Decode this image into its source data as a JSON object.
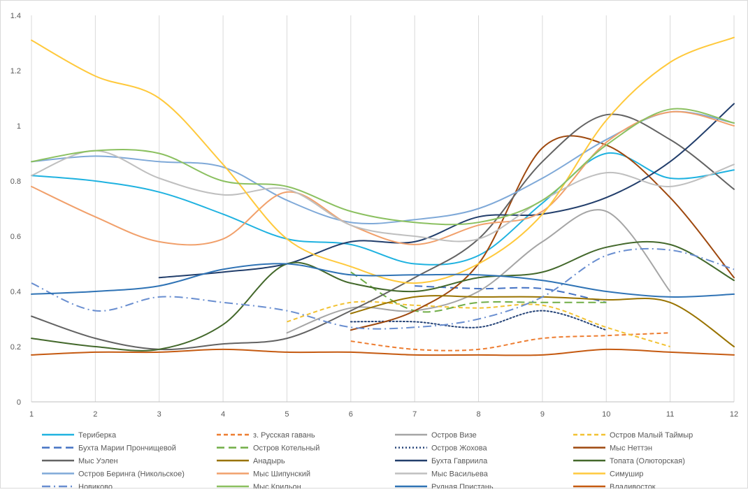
{
  "chart_data": {
    "type": "line",
    "title": "",
    "xlabel": "",
    "ylabel": "",
    "xlim": [
      1,
      12
    ],
    "ylim": [
      0,
      1.4
    ],
    "x_ticks": [
      "1",
      "2",
      "3",
      "4",
      "5",
      "6",
      "7",
      "8",
      "9",
      "10",
      "11",
      "12"
    ],
    "y_ticks": [
      "0",
      "0.2",
      "0.4",
      "0.6",
      "0.8",
      "1",
      "1.2",
      "1.4"
    ],
    "grid": "vertical",
    "legend_position": "bottom",
    "series": [
      {
        "name": "Териберка",
        "color": "#1fb2e0",
        "dash": "solid",
        "x": [
          1,
          2,
          3,
          4,
          5,
          6,
          7,
          8,
          9,
          10,
          11,
          12
        ],
        "values": [
          0.82,
          0.8,
          0.76,
          0.68,
          0.59,
          0.57,
          0.5,
          0.53,
          0.72,
          0.9,
          0.81,
          0.84
        ]
      },
      {
        "name": "з. Русская гавань",
        "color": "#ed7d31",
        "dash": "dashed",
        "x": [
          6,
          7,
          8,
          9,
          10,
          11
        ],
        "values": [
          0.22,
          0.19,
          0.19,
          0.23,
          0.24,
          0.25
        ]
      },
      {
        "name": "Остров Визе",
        "color": "#a5a5a5",
        "dash": "solid",
        "x": [
          5,
          6,
          7,
          8,
          9,
          10,
          11
        ],
        "values": [
          0.25,
          0.34,
          0.33,
          0.4,
          0.58,
          0.69,
          0.4
        ]
      },
      {
        "name": "Остров Малый Таймыр",
        "color": "#f2c233",
        "dash": "dashed",
        "x": [
          5,
          6,
          7,
          8,
          9,
          10,
          11
        ],
        "values": [
          0.29,
          0.36,
          0.35,
          0.34,
          0.35,
          0.27,
          0.2
        ]
      },
      {
        "name": "Бухта Марии Прончищевой",
        "color": "#4472c4",
        "dash": "longdash",
        "x": [
          7,
          8,
          9,
          10
        ],
        "values": [
          0.42,
          0.41,
          0.41,
          0.36
        ]
      },
      {
        "name": "Остров Котельный",
        "color": "#70ad47",
        "dash": "longdash",
        "x": [
          6,
          7,
          8,
          9,
          10
        ],
        "values": [
          0.47,
          0.33,
          0.36,
          0.36,
          0.36
        ]
      },
      {
        "name": "Остров Жохова",
        "color": "#264478",
        "dash": "dotted",
        "x": [
          6,
          7,
          8,
          9,
          10
        ],
        "values": [
          0.29,
          0.29,
          0.27,
          0.33,
          0.26
        ]
      },
      {
        "name": "Мыс Неттэн",
        "color": "#9e480e",
        "dash": "solid",
        "x": [
          6,
          7,
          8,
          9,
          10,
          11,
          12
        ],
        "values": [
          0.26,
          0.33,
          0.5,
          0.92,
          0.93,
          0.74,
          0.45
        ]
      },
      {
        "name": "Мыс Уэлен",
        "color": "#636363",
        "dash": "solid",
        "x": [
          1,
          2,
          3,
          4,
          5,
          6,
          7,
          8,
          9,
          10,
          11,
          12
        ],
        "values": [
          0.31,
          0.23,
          0.19,
          0.21,
          0.23,
          0.33,
          0.45,
          0.59,
          0.87,
          1.04,
          0.95,
          0.77
        ]
      },
      {
        "name": "Анадырь",
        "color": "#997300",
        "dash": "solid",
        "x": [
          6,
          7,
          8,
          9,
          10,
          11,
          12
        ],
        "values": [
          0.32,
          0.38,
          0.38,
          0.38,
          0.37,
          0.36,
          0.2
        ]
      },
      {
        "name": "Бухта Гавриила",
        "color": "#223e6b",
        "dash": "solid",
        "x": [
          3,
          4,
          5,
          6,
          7,
          8,
          9,
          10,
          11,
          12
        ],
        "values": [
          0.45,
          0.47,
          0.5,
          0.58,
          0.58,
          0.67,
          0.68,
          0.74,
          0.87,
          1.08
        ]
      },
      {
        "name": "Топата (Олюторская)",
        "color": "#43682b",
        "dash": "solid",
        "x": [
          1,
          2,
          3,
          4,
          5,
          6,
          7,
          8,
          9,
          10,
          11,
          12
        ],
        "values": [
          0.23,
          0.2,
          0.19,
          0.28,
          0.5,
          0.43,
          0.4,
          0.45,
          0.47,
          0.56,
          0.57,
          0.44
        ]
      },
      {
        "name": "Остров Беринга (Никольское)",
        "color": "#7fa9d8",
        "dash": "solid",
        "x": [
          1,
          2,
          3,
          4,
          5,
          6,
          7,
          8,
          9,
          10,
          11,
          12
        ],
        "values": [
          0.87,
          0.89,
          0.87,
          0.85,
          0.73,
          0.65,
          0.66,
          0.7,
          0.81,
          0.95,
          1.05,
          1.01
        ]
      },
      {
        "name": "Мыс Шипунский",
        "color": "#f1a06b",
        "dash": "solid",
        "x": [
          1,
          2,
          3,
          4,
          5,
          6,
          7,
          8,
          9,
          10,
          11,
          12
        ],
        "values": [
          0.78,
          0.67,
          0.58,
          0.59,
          0.76,
          0.64,
          0.57,
          0.64,
          0.69,
          0.94,
          1.05,
          1.0
        ]
      },
      {
        "name": "Мыс Васильева",
        "color": "#bfbfbf",
        "dash": "solid",
        "x": [
          1,
          2,
          3,
          4,
          5,
          6,
          7,
          8,
          9,
          10,
          11,
          12
        ],
        "values": [
          0.82,
          0.91,
          0.81,
          0.75,
          0.77,
          0.64,
          0.6,
          0.59,
          0.73,
          0.83,
          0.78,
          0.86
        ]
      },
      {
        "name": "Симушир",
        "color": "#ffc93c",
        "dash": "solid",
        "x": [
          1,
          2,
          3,
          4,
          5,
          6,
          7,
          8,
          9,
          10,
          11,
          12
        ],
        "values": [
          1.31,
          1.18,
          1.1,
          0.86,
          0.59,
          0.49,
          0.43,
          0.5,
          0.68,
          1.02,
          1.23,
          1.32
        ]
      },
      {
        "name": "Новиково",
        "color": "#698ed0",
        "dash": "dashdot",
        "x": [
          1,
          2,
          3,
          4,
          5,
          6,
          7,
          8,
          9,
          10,
          11,
          12
        ],
        "values": [
          0.43,
          0.33,
          0.38,
          0.36,
          0.33,
          0.27,
          0.27,
          0.3,
          0.38,
          0.53,
          0.55,
          0.48
        ]
      },
      {
        "name": "Мыс Крильон",
        "color": "#8bc060",
        "dash": "solid",
        "x": [
          1,
          2,
          3,
          4,
          5,
          6,
          7,
          8,
          9,
          10,
          11,
          12
        ],
        "values": [
          0.87,
          0.91,
          0.9,
          0.8,
          0.78,
          0.69,
          0.65,
          0.65,
          0.73,
          0.93,
          1.06,
          1.01
        ]
      },
      {
        "name": "Рудная Пристань",
        "color": "#2f73b5",
        "dash": "solid",
        "x": [
          1,
          2,
          3,
          4,
          5,
          6,
          7,
          8,
          9,
          10,
          11,
          12
        ],
        "values": [
          0.39,
          0.4,
          0.42,
          0.48,
          0.5,
          0.46,
          0.46,
          0.46,
          0.44,
          0.4,
          0.38,
          0.39
        ]
      },
      {
        "name": "Владивосток",
        "color": "#c55a11",
        "dash": "solid",
        "x": [
          1,
          2,
          3,
          4,
          5,
          6,
          7,
          8,
          9,
          10,
          11,
          12
        ],
        "values": [
          0.17,
          0.18,
          0.18,
          0.19,
          0.18,
          0.18,
          0.17,
          0.17,
          0.17,
          0.19,
          0.18,
          0.17
        ]
      }
    ]
  }
}
